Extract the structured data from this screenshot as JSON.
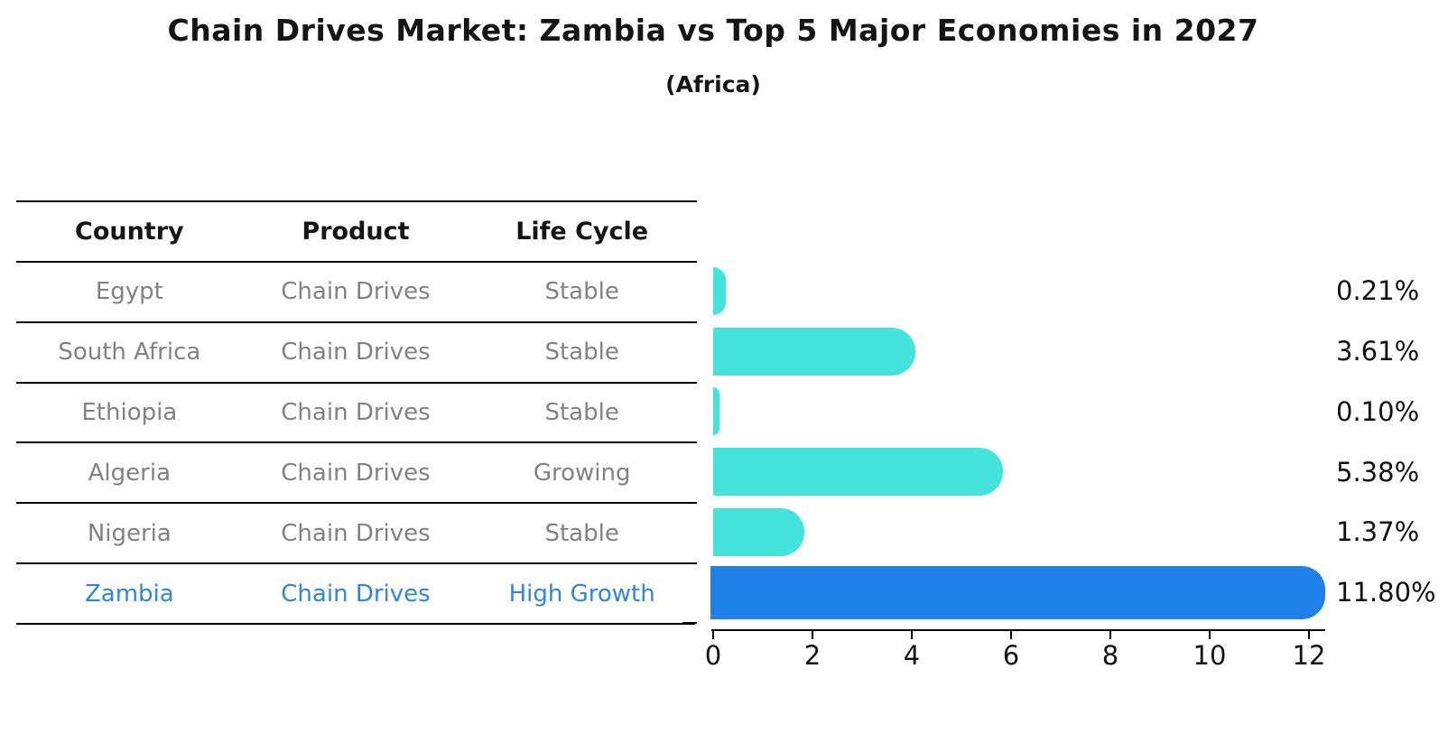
{
  "title": "Chain Drives Market: Zambia vs Top 5 Major Economies in 2027",
  "subtitle": "(Africa)",
  "table": {
    "headers": [
      "Country",
      "Product",
      "Life Cycle"
    ],
    "rows": [
      {
        "country": "Egypt",
        "product": "Chain Drives",
        "life_cycle": "Stable"
      },
      {
        "country": "South Africa",
        "product": "Chain Drives",
        "life_cycle": "Stable"
      },
      {
        "country": "Ethiopia",
        "product": "Chain Drives",
        "life_cycle": "Stable"
      },
      {
        "country": "Algeria",
        "product": "Chain Drives",
        "life_cycle": "Growing"
      },
      {
        "country": "Nigeria",
        "product": "Chain Drives",
        "life_cycle": "Stable"
      },
      {
        "country": "Zambia",
        "product": "Chain Drives",
        "life_cycle": "High Growth"
      }
    ]
  },
  "chart_data": {
    "type": "bar",
    "orientation": "horizontal",
    "title": "",
    "xlabel": "",
    "ylabel": "",
    "categories": [
      "Egypt",
      "South Africa",
      "Ethiopia",
      "Algeria",
      "Nigeria",
      "Zambia"
    ],
    "values": [
      0.21,
      3.61,
      0.1,
      5.38,
      1.37,
      11.8
    ],
    "value_labels": [
      "0.21%",
      "3.61%",
      "0.10%",
      "5.38%",
      "1.37%",
      "11.80%"
    ],
    "x_ticks": [
      "0",
      "2",
      "4",
      "6",
      "8",
      "10",
      "12"
    ],
    "xlim": [
      0,
      12.3
    ],
    "grid": false,
    "legend": "none",
    "highlight_index": 5,
    "bar_style": "rounded-right-cap, highlighted bar has dotted edge"
  },
  "colors": {
    "bar": "#44E3DC",
    "highlight": "#1F80E8",
    "highlight_text": "#2E86DE",
    "table_text": "#828282",
    "heading_text": "#151515",
    "background": "#ffffff"
  }
}
